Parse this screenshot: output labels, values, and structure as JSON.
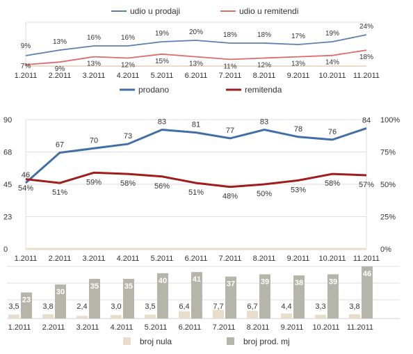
{
  "colors": {
    "udio_prodaja": "#5b7fb0",
    "udio_remitenda": "#de6b6b",
    "prodano": "#416ea5",
    "remitenda": "#a01d1d",
    "broj_nula": "#e8dccb",
    "broj_prod": "#b5b5a9",
    "grid": "#dddddd",
    "text": "#333333"
  },
  "chart_data": [
    {
      "type": "line",
      "categories": [
        "1.2011",
        "2.2011",
        "3.2011",
        "4.2011",
        "5.2011",
        "6.2011",
        "7.2011",
        "8.2011",
        "9.2011",
        "10.2011",
        "11.2011"
      ],
      "legend": "top",
      "series": [
        {
          "name": "udio u prodaji",
          "values": [
            9,
            13,
            16,
            16,
            19,
            20,
            18,
            18,
            17,
            19,
            24
          ],
          "labels": [
            "9%",
            "13%",
            "16%",
            "16%",
            "19%",
            "20%",
            "18%",
            "18%",
            "17%",
            "19%",
            "24%"
          ]
        },
        {
          "name": "udio u remitendi",
          "values": [
            7,
            9,
            13,
            12,
            15,
            13,
            11,
            12,
            13,
            14,
            18
          ],
          "labels": [
            "7%",
            "9%",
            "13%",
            "12%",
            "15%",
            "13%",
            "11%",
            "12%",
            "13%",
            "14%",
            "18%"
          ]
        }
      ]
    },
    {
      "type": "line",
      "categories": [
        "1.2011",
        "2.2011",
        "3.2011",
        "4.2011",
        "5.2011",
        "6.2011",
        "7.2011",
        "8.2011",
        "9.2011",
        "10.2011",
        "11.2011"
      ],
      "legend": "top",
      "y_left": {
        "ticks": [
          "0",
          "23",
          "45",
          "68",
          "90"
        ],
        "ylim": [
          0,
          90
        ]
      },
      "y_right": {
        "ticks": [
          "0%",
          "25%",
          "50%",
          "75%",
          "100%"
        ],
        "ylim": [
          0,
          100
        ]
      },
      "series": [
        {
          "name": "prodano",
          "axis": "left",
          "values": [
            46,
            67,
            70,
            73,
            83,
            81,
            77,
            83,
            78,
            76,
            84
          ],
          "labels": [
            "46",
            "67",
            "70",
            "73",
            "83",
            "81",
            "77",
            "83",
            "78",
            "76",
            "84"
          ]
        },
        {
          "name": "remitenda",
          "axis": "right",
          "values": [
            54,
            51,
            59,
            58,
            56,
            51,
            48,
            50,
            53,
            58,
            57
          ],
          "labels": [
            "54%",
            "51%",
            "59%",
            "58%",
            "56%",
            "51%",
            "48%",
            "50%",
            "53%",
            "58%",
            "57%"
          ]
        }
      ]
    },
    {
      "type": "bar",
      "categories": [
        "1.2011",
        "2.2011",
        "3.2011",
        "4.2011",
        "5.2011",
        "6.2011",
        "7.2011",
        "8.2011",
        "9.2011",
        "10.2011",
        "11.2011"
      ],
      "legend": "bottom",
      "ylim": [
        0,
        46
      ],
      "series": [
        {
          "name": "broj nula",
          "values": [
            3.5,
            3.8,
            2.4,
            3.0,
            3.5,
            6.4,
            7.7,
            6.7,
            4.4,
            3.3,
            3.8
          ],
          "labels": [
            "3,5",
            "3,8",
            "2,4",
            "3,0",
            "3,5",
            "6,4",
            "7,7",
            "6,7",
            "4,4",
            "3,3",
            "3,8"
          ]
        },
        {
          "name": "broj prod. mj",
          "values": [
            23,
            30,
            35,
            35,
            40,
            41,
            37,
            39,
            38,
            39,
            46
          ],
          "labels": [
            "23",
            "30",
            "35",
            "35",
            "40",
            "41",
            "37",
            "39",
            "38",
            "39",
            "46"
          ]
        }
      ]
    }
  ]
}
